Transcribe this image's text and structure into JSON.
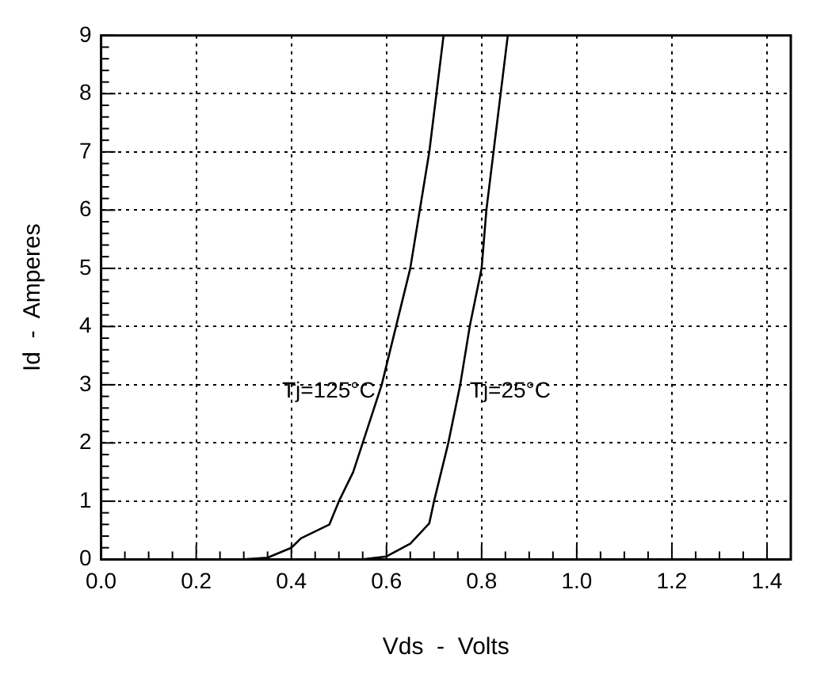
{
  "chart_data": {
    "type": "line",
    "xlabel": "Vds  -  Volts",
    "ylabel": "Id  -  Amperes",
    "xlim": [
      0,
      1.45
    ],
    "ylim": [
      0,
      9
    ],
    "xticks": [
      {
        "value": 0,
        "label": "0.0"
      },
      {
        "value": 0.05,
        "label": null
      },
      {
        "value": 0.1,
        "label": null
      },
      {
        "value": 0.15,
        "label": null
      },
      {
        "value": 0.2,
        "label": "0.2"
      },
      {
        "value": 0.25,
        "label": null
      },
      {
        "value": 0.3,
        "label": null
      },
      {
        "value": 0.35,
        "label": null
      },
      {
        "value": 0.4,
        "label": "0.4"
      },
      {
        "value": 0.45,
        "label": null
      },
      {
        "value": 0.5,
        "label": null
      },
      {
        "value": 0.55,
        "label": null
      },
      {
        "value": 0.6,
        "label": "0.6"
      },
      {
        "value": 0.65,
        "label": null
      },
      {
        "value": 0.7,
        "label": null
      },
      {
        "value": 0.75,
        "label": null
      },
      {
        "value": 0.8,
        "label": "0.8"
      },
      {
        "value": 0.85,
        "label": null
      },
      {
        "value": 0.9,
        "label": null
      },
      {
        "value": 0.95,
        "label": null
      },
      {
        "value": 1,
        "label": "1.0"
      },
      {
        "value": 1.05,
        "label": null
      },
      {
        "value": 1.1,
        "label": null
      },
      {
        "value": 1.15,
        "label": null
      },
      {
        "value": 1.2,
        "label": "1.2"
      },
      {
        "value": 1.25,
        "label": null
      },
      {
        "value": 1.3,
        "label": null
      },
      {
        "value": 1.35,
        "label": null
      },
      {
        "value": 1.4,
        "label": "1.4"
      }
    ],
    "yticks": [
      0,
      {
        "value": 0.2,
        "label": null
      },
      {
        "value": 0.4,
        "label": null
      },
      {
        "value": 0.6,
        "label": null
      },
      {
        "value": 0.8,
        "label": null
      },
      1,
      {
        "value": 1.2,
        "label": null
      },
      {
        "value": 1.4,
        "label": null
      },
      {
        "value": 1.6,
        "label": null
      },
      {
        "value": 1.8,
        "label": null
      },
      2,
      {
        "value": 2.2,
        "label": null
      },
      {
        "value": 2.4,
        "label": null
      },
      {
        "value": 2.6,
        "label": null
      },
      {
        "value": 2.8,
        "label": null
      },
      3,
      {
        "value": 3.2,
        "label": null
      },
      {
        "value": 3.4,
        "label": null
      },
      {
        "value": 3.6,
        "label": null
      },
      {
        "value": 3.8,
        "label": null
      },
      4,
      {
        "value": 4.2,
        "label": null
      },
      {
        "value": 4.4,
        "label": null
      },
      {
        "value": 4.6,
        "label": null
      },
      {
        "value": 4.8,
        "label": null
      },
      5,
      {
        "value": 5.2,
        "label": null
      },
      {
        "value": 5.4,
        "label": null
      },
      {
        "value": 5.6,
        "label": null
      },
      {
        "value": 5.8,
        "label": null
      },
      6,
      {
        "value": 6.2,
        "label": null
      },
      {
        "value": 6.4,
        "label": null
      },
      {
        "value": 6.6,
        "label": null
      },
      {
        "value": 6.8,
        "label": null
      },
      7,
      {
        "value": 7.2,
        "label": null
      },
      {
        "value": 7.4,
        "label": null
      },
      {
        "value": 7.6,
        "label": null
      },
      {
        "value": 7.8,
        "label": null
      },
      8,
      {
        "value": 8.2,
        "label": null
      },
      {
        "value": 8.4,
        "label": null
      },
      {
        "value": 8.6,
        "label": null
      },
      {
        "value": 8.8,
        "label": null
      },
      9
    ],
    "grid": true,
    "legend": false,
    "marker": "none",
    "line_style": "solid",
    "series": [
      {
        "name": "Tj=125°C",
        "color": "#000000",
        "x": [
          0,
          0.3,
          0.35,
          0.4,
          0.42,
          0.48,
          0.5,
          0.53,
          0.55,
          0.59,
          0.62,
          0.65,
          0.67,
          0.69,
          0.705,
          0.72
        ],
        "values": [
          0,
          0,
          0.03,
          0.2,
          0.36,
          0.6,
          1,
          1.5,
          2,
          3,
          4,
          5,
          6,
          7,
          8,
          9
        ]
      },
      {
        "name": "Tj=25°C",
        "color": "#000000",
        "x": [
          0,
          0.55,
          0.6,
          0.65,
          0.69,
          0.7,
          0.73,
          0.755,
          0.775,
          0.8,
          0.81,
          0.825,
          0.84,
          0.855
        ],
        "values": [
          0,
          0,
          0.05,
          0.27,
          0.62,
          1,
          2,
          3,
          4,
          5,
          6,
          7,
          8,
          9
        ]
      }
    ]
  }
}
